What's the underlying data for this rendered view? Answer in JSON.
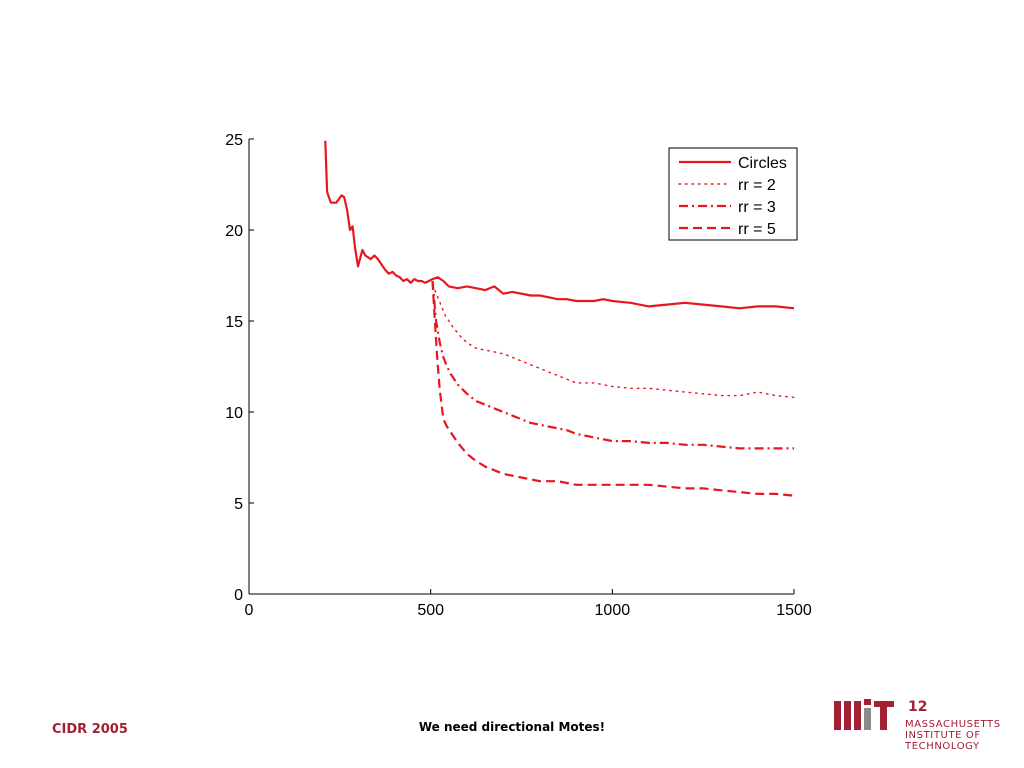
{
  "footer": {
    "left": "CIDR 2005",
    "center": "We need directional Motes!",
    "page_number": "12",
    "institution_lines": [
      "MASSACHUSETTS",
      "INSTITUTE OF",
      "TECHNOLOGY"
    ]
  },
  "colors": {
    "series": "#e8161f",
    "brand": "#a31f34"
  },
  "logo_icon": "mit-logo-icon",
  "chart_data": {
    "type": "line",
    "title": "",
    "xlabel": "",
    "ylabel": "",
    "xlim": [
      0,
      1500
    ],
    "ylim": [
      0,
      25
    ],
    "xticks": [
      0,
      500,
      1000,
      1500
    ],
    "yticks": [
      0,
      5,
      10,
      15,
      20,
      25
    ],
    "grid": false,
    "legend_position": "top-right",
    "series": [
      {
        "name": "Circles",
        "style": "solid",
        "x": [
          210,
          215,
          225,
          240,
          255,
          262,
          270,
          278,
          285,
          292,
          300,
          312,
          320,
          335,
          345,
          355,
          365,
          375,
          385,
          395,
          405,
          415,
          425,
          435,
          445,
          455,
          465,
          475,
          485,
          495,
          505,
          520,
          535,
          550,
          575,
          600,
          625,
          650,
          675,
          700,
          725,
          750,
          775,
          800,
          825,
          850,
          875,
          900,
          925,
          950,
          975,
          1000,
          1050,
          1100,
          1150,
          1200,
          1250,
          1300,
          1350,
          1400,
          1450,
          1500
        ],
        "y": [
          24.9,
          22.1,
          21.5,
          21.5,
          21.9,
          21.8,
          21.1,
          20.0,
          20.2,
          19.0,
          18.0,
          18.9,
          18.6,
          18.4,
          18.6,
          18.4,
          18.1,
          17.8,
          17.6,
          17.7,
          17.5,
          17.4,
          17.2,
          17.3,
          17.1,
          17.3,
          17.2,
          17.2,
          17.1,
          17.2,
          17.3,
          17.4,
          17.2,
          16.9,
          16.8,
          16.9,
          16.8,
          16.7,
          16.9,
          16.5,
          16.6,
          16.5,
          16.4,
          16.4,
          16.3,
          16.2,
          16.2,
          16.1,
          16.1,
          16.1,
          16.2,
          16.1,
          16.0,
          15.8,
          15.9,
          16.0,
          15.9,
          15.8,
          15.7,
          15.8,
          15.8,
          15.7
        ]
      },
      {
        "name": "rr = 2",
        "style": "dotted",
        "x": [
          505,
          520,
          540,
          560,
          580,
          600,
          625,
          650,
          675,
          700,
          725,
          750,
          775,
          800,
          825,
          850,
          875,
          900,
          950,
          1000,
          1050,
          1100,
          1150,
          1200,
          1250,
          1300,
          1350,
          1400,
          1450,
          1500
        ],
        "y": [
          17.0,
          16.3,
          15.3,
          14.7,
          14.2,
          13.8,
          13.5,
          13.4,
          13.3,
          13.2,
          13.0,
          12.8,
          12.6,
          12.4,
          12.2,
          12.0,
          11.8,
          11.6,
          11.6,
          11.4,
          11.3,
          11.3,
          11.2,
          11.1,
          11.0,
          10.9,
          10.9,
          11.1,
          10.9,
          10.8
        ]
      },
      {
        "name": "rr = 3",
        "style": "dashdot",
        "x": [
          505,
          515,
          525,
          535,
          545,
          555,
          575,
          600,
          625,
          650,
          675,
          700,
          725,
          750,
          775,
          800,
          825,
          850,
          875,
          900,
          950,
          1000,
          1050,
          1100,
          1150,
          1200,
          1250,
          1300,
          1350,
          1400,
          1450,
          1500
        ],
        "y": [
          17.2,
          15.0,
          13.8,
          13.0,
          12.5,
          12.1,
          11.5,
          11.0,
          10.6,
          10.4,
          10.2,
          10.0,
          9.8,
          9.6,
          9.4,
          9.3,
          9.2,
          9.1,
          9.0,
          8.8,
          8.6,
          8.4,
          8.4,
          8.3,
          8.3,
          8.2,
          8.2,
          8.1,
          8.0,
          8.0,
          8.0,
          8.0
        ]
      },
      {
        "name": "rr = 5",
        "style": "dashed",
        "x": [
          505,
          510,
          518,
          525,
          535,
          545,
          555,
          575,
          600,
          625,
          650,
          675,
          700,
          725,
          750,
          775,
          800,
          825,
          850,
          875,
          900,
          950,
          1000,
          1050,
          1100,
          1150,
          1200,
          1250,
          1300,
          1350,
          1400,
          1450,
          1500
        ],
        "y": [
          17.2,
          15.5,
          13.0,
          11.2,
          9.6,
          9.2,
          8.9,
          8.3,
          7.7,
          7.3,
          7.0,
          6.8,
          6.6,
          6.5,
          6.4,
          6.3,
          6.2,
          6.2,
          6.2,
          6.1,
          6.0,
          6.0,
          6.0,
          6.0,
          6.0,
          5.9,
          5.8,
          5.8,
          5.7,
          5.6,
          5.5,
          5.5,
          5.4
        ]
      }
    ]
  }
}
